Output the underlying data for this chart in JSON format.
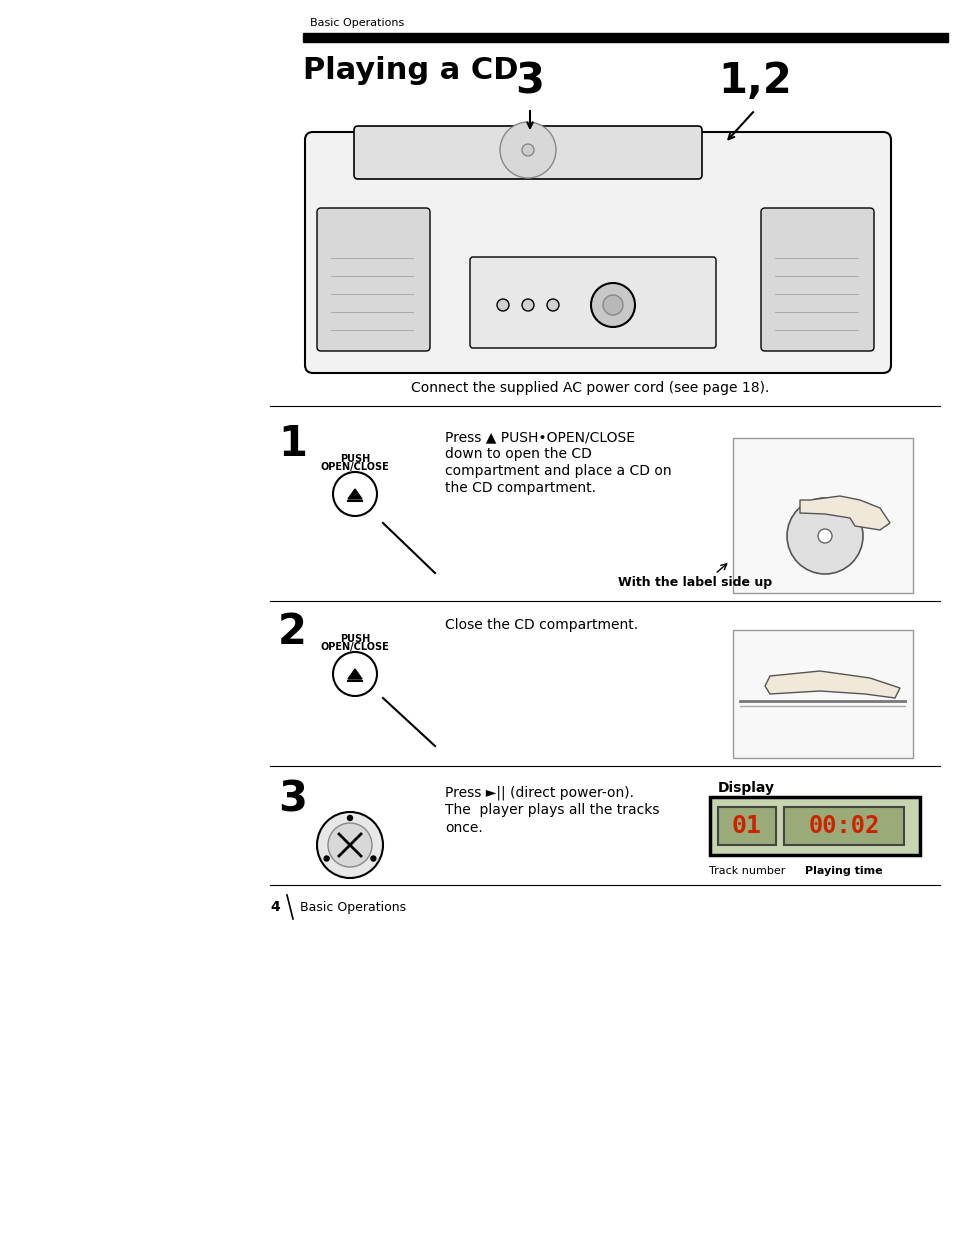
{
  "bg_color": "#ffffff",
  "page_width": 9.54,
  "page_height": 12.33,
  "header_label": "Basic Operations",
  "title": "Playing a CD",
  "step1_num": "1",
  "step1_button_label1": "PUSH",
  "step1_button_label2": "OPEN/CLOSE",
  "step1_text_line1": "Press ▲ PUSH•OPEN/CLOSE",
  "step1_text_line2": "down to open the CD",
  "step1_text_line3": "compartment and place a CD on",
  "step1_text_line4": "the CD compartment.",
  "step1_note": "With the label side up",
  "step2_num": "2",
  "step2_button_label1": "PUSH",
  "step2_button_label2": "OPEN/CLOSE",
  "step2_text": "Close the CD compartment.",
  "step3_num": "3",
  "step3_text_line1": "Press ►|| (direct power-on).",
  "step3_text_line2": "The  player plays all the tracks",
  "step3_text_line3": "once.",
  "display_label": "Display",
  "track_label": "Track number",
  "time_label": "Playing time",
  "connect_text": "Connect the supplied AC power cord (see page 18).",
  "footer_page": "4",
  "footer_text": "Basic Operations",
  "num3_label": "3",
  "num12_label": "1,2"
}
